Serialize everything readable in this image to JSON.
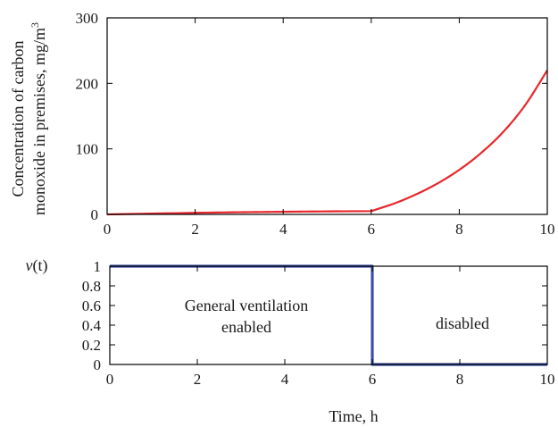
{
  "chart_data": [
    {
      "type": "line",
      "ylabel_line1": "Concentration of carbon",
      "ylabel_line2": "monoxide in premises, mg/m",
      "ylabel_sup": "3",
      "xlim": [
        0,
        10
      ],
      "ylim": [
        0,
        300
      ],
      "xticks": [
        "0",
        "2",
        "4",
        "6",
        "8",
        "10"
      ],
      "yticks": [
        "0",
        "100",
        "200",
        "300"
      ],
      "grid": false,
      "series": [
        {
          "color": "#e8262b",
          "x": [
            0,
            1,
            2,
            3,
            4,
            5,
            6,
            6.5,
            7,
            7.5,
            8,
            8.5,
            9,
            9.5,
            10
          ],
          "y": [
            0,
            1.2,
            2.4,
            3.3,
            4.0,
            4.6,
            5.0,
            16,
            30,
            47,
            68,
            94,
            126,
            167,
            220
          ]
        }
      ]
    },
    {
      "type": "line",
      "ylabel_main": "v",
      "ylabel_arg": "(t)",
      "xlabel": "Time, h",
      "xlim": [
        0,
        10
      ],
      "ylim": [
        0,
        1
      ],
      "xticks": [
        "0",
        "2",
        "4",
        "6",
        "8",
        "10"
      ],
      "yticks": [
        "0",
        "0.2",
        "0.4",
        "0.6",
        "0.8",
        "1"
      ],
      "grid": false,
      "annotations": {
        "enabled_line1": "General ventilation",
        "enabled_line2": "enabled",
        "disabled": "disabled"
      },
      "series": [
        {
          "color": "#3a4fa8",
          "x": [
            0,
            6,
            6,
            10
          ],
          "y": [
            1,
            1,
            0,
            0
          ]
        }
      ]
    }
  ]
}
